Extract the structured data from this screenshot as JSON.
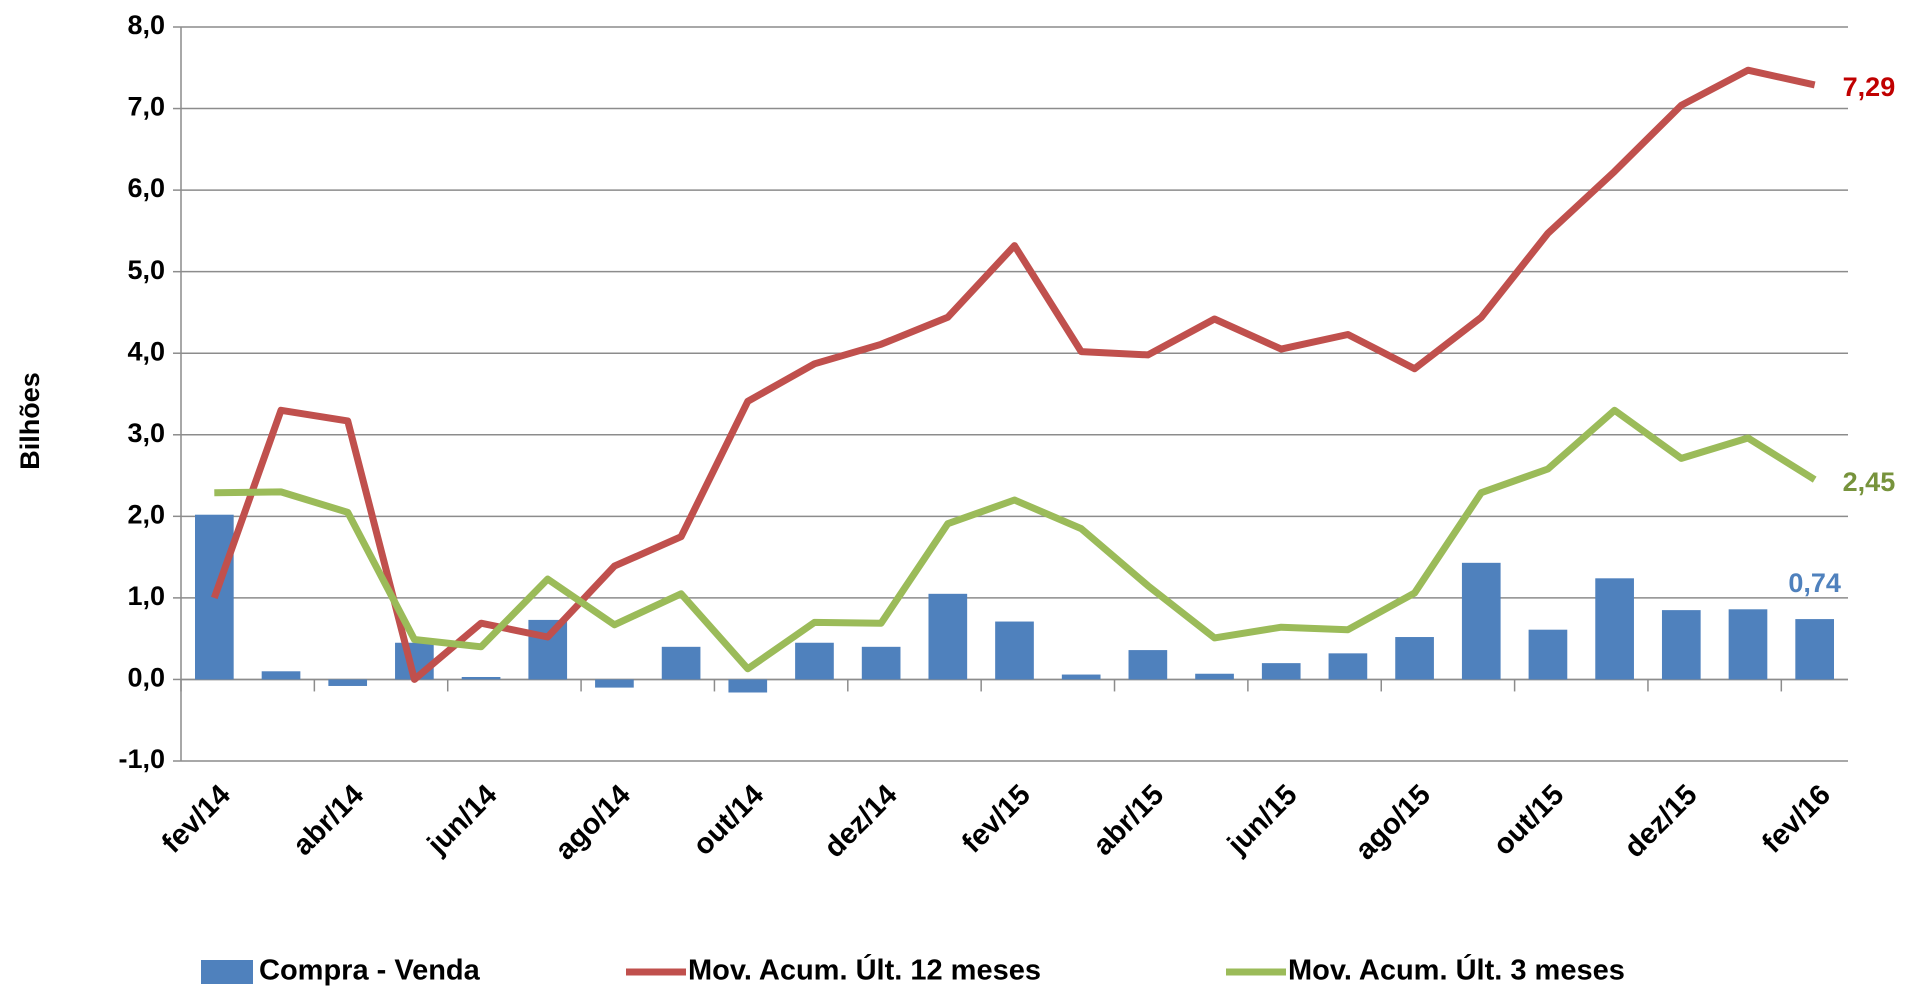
{
  "chart_data": {
    "type": "bar_line",
    "y_label": "Bilhões",
    "categories": [
      "fev/14",
      null,
      "abr/14",
      null,
      "jun/14",
      null,
      "ago/14",
      null,
      "out/14",
      null,
      "dez/14",
      null,
      "fev/15",
      null,
      "abr/15",
      null,
      "jun/15",
      null,
      "ago/15",
      null,
      "out/15",
      null,
      "dez/15",
      null,
      "fev/16"
    ],
    "series": [
      {
        "name": "Compra - Venda",
        "type": "bar",
        "color": "#4f81bd",
        "label_color": "#4f81bd",
        "values": [
          2.02,
          0.1,
          -0.08,
          0.45,
          0.03,
          0.73,
          -0.1,
          0.4,
          -0.16,
          0.45,
          0.4,
          1.05,
          0.71,
          0.06,
          0.36,
          0.07,
          0.2,
          0.32,
          0.52,
          1.43,
          0.61,
          1.24,
          0.85,
          0.86,
          0.74
        ],
        "value_labels": [
          null,
          null,
          null,
          null,
          null,
          null,
          null,
          null,
          null,
          null,
          null,
          null,
          null,
          null,
          null,
          null,
          null,
          null,
          null,
          null,
          null,
          null,
          null,
          null,
          "0,74"
        ]
      },
      {
        "name": "Mov. Acum. Últ. 12 meses",
        "type": "line",
        "color": "#c0504d",
        "label_color": "#c00000",
        "values": [
          1.0,
          3.3,
          3.17,
          0.0,
          0.69,
          0.52,
          1.39,
          1.75,
          3.41,
          3.87,
          4.11,
          4.44,
          5.32,
          4.02,
          3.98,
          4.42,
          4.05,
          4.23,
          3.81,
          4.44,
          5.47,
          6.23,
          7.04,
          7.47,
          7.29
        ],
        "value_labels": [
          null,
          null,
          null,
          null,
          null,
          null,
          null,
          null,
          null,
          null,
          null,
          null,
          null,
          null,
          null,
          null,
          null,
          null,
          null,
          null,
          null,
          null,
          null,
          null,
          "7,29"
        ]
      },
      {
        "name": "Mov. Acum. Últ. 3 meses",
        "type": "line",
        "color": "#9bbb59",
        "label_color": "#77933c",
        "values": [
          2.29,
          2.3,
          2.05,
          0.49,
          0.4,
          1.23,
          0.67,
          1.05,
          0.13,
          0.7,
          0.69,
          1.91,
          2.2,
          1.85,
          1.15,
          0.51,
          0.64,
          0.61,
          1.06,
          2.29,
          2.58,
          3.3,
          2.71,
          2.96,
          2.45
        ],
        "value_labels": [
          null,
          null,
          null,
          null,
          null,
          null,
          null,
          null,
          null,
          null,
          null,
          null,
          null,
          null,
          null,
          null,
          null,
          null,
          null,
          null,
          null,
          null,
          null,
          null,
          "2,45"
        ]
      }
    ],
    "ylim": [
      -1,
      8
    ],
    "yticks": [
      {
        "value": -1,
        "label": "-1,0"
      },
      {
        "value": 0,
        "label": "0,0"
      },
      {
        "value": 1,
        "label": "1,0"
      },
      {
        "value": 2,
        "label": "2,0"
      },
      {
        "value": 3,
        "label": "3,0"
      },
      {
        "value": 4,
        "label": "4,0"
      },
      {
        "value": 5,
        "label": "5,0"
      },
      {
        "value": 6,
        "label": "6,0"
      },
      {
        "value": 7,
        "label": "7,0"
      },
      {
        "value": 8,
        "label": "8,0"
      }
    ],
    "grid": true,
    "legend": "bottom"
  }
}
